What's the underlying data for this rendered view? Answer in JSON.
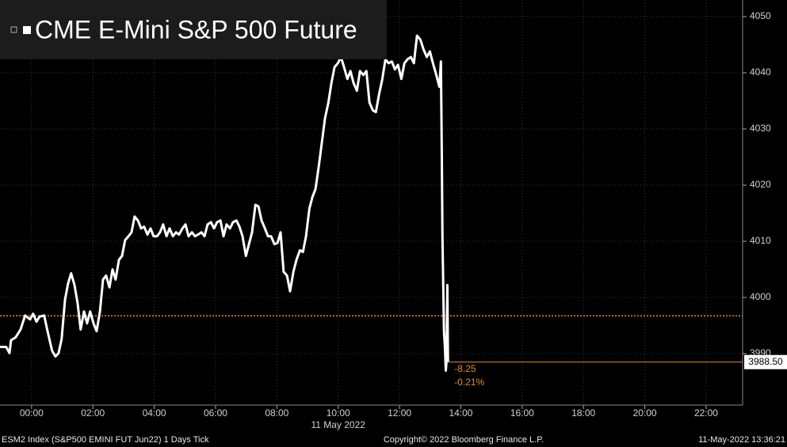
{
  "chart_data": {
    "type": "line",
    "title": "CME E-Mini S&P 500 Future",
    "x": [
      -1.03,
      -0.83,
      -0.72,
      -0.67,
      -0.52,
      -0.36,
      -0.21,
      -0.05,
      0.05,
      0.16,
      0.26,
      0.41,
      0.52,
      0.67,
      0.78,
      0.88,
      0.98,
      1.09,
      1.19,
      1.29,
      1.4,
      1.5,
      1.6,
      1.71,
      1.81,
      1.91,
      2.02,
      2.12,
      2.23,
      2.33,
      2.43,
      2.54,
      2.64,
      2.74,
      2.85,
      2.95,
      3.05,
      3.16,
      3.26,
      3.36,
      3.47,
      3.57,
      3.67,
      3.78,
      3.88,
      3.98,
      4.09,
      4.19,
      4.29,
      4.4,
      4.5,
      4.61,
      4.71,
      4.81,
      4.92,
      5.02,
      5.12,
      5.23,
      5.33,
      5.43,
      5.54,
      5.64,
      5.74,
      5.85,
      5.95,
      6.05,
      6.16,
      6.26,
      6.36,
      6.47,
      6.57,
      6.68,
      6.78,
      6.88,
      6.99,
      7.09,
      7.19,
      7.3,
      7.4,
      7.5,
      7.61,
      7.71,
      7.81,
      7.92,
      8.02,
      8.12,
      8.22,
      8.33,
      8.43,
      8.54,
      8.64,
      8.75,
      8.85,
      8.95,
      9.06,
      9.16,
      9.26,
      9.37,
      9.47,
      9.57,
      9.68,
      9.78,
      9.88,
      9.99,
      10.09,
      10.19,
      10.3,
      10.4,
      10.5,
      10.61,
      10.71,
      10.82,
      10.92,
      11.02,
      11.13,
      11.23,
      11.33,
      11.44,
      11.54,
      11.64,
      11.75,
      11.85,
      11.95,
      12.06,
      12.16,
      12.26,
      12.37,
      12.47,
      12.57,
      12.68,
      12.78,
      12.89,
      12.99,
      13.09,
      13.2,
      13.3,
      13.35,
      13.38,
      13.4,
      13.45,
      13.48,
      13.51,
      13.53,
      13.56,
      13.58
    ],
    "series": [
      {
        "name": "CME E-Mini S&P 500 Future",
        "color": "#ffffff",
        "values": [
          3991.2,
          3991.2,
          3990.1,
          3992.4,
          3992.9,
          3994.3,
          3996.8,
          3996.1,
          3997.1,
          3995.7,
          3996.6,
          3996.8,
          3994.0,
          3990.5,
          3989.5,
          3990.1,
          3992.6,
          3999.6,
          4002.5,
          4004.3,
          4002.2,
          3999.0,
          3994.3,
          3997.5,
          3995.4,
          3997.5,
          3995.4,
          3994.0,
          3997.5,
          4003.2,
          4003.9,
          4001.8,
          4005.0,
          4003.2,
          4006.7,
          4007.4,
          4010.2,
          4010.9,
          4011.6,
          4014.4,
          4013.7,
          4012.3,
          4012.6,
          4011.2,
          4012.3,
          4010.9,
          4010.9,
          4011.6,
          4013.0,
          4010.9,
          4012.3,
          4010.9,
          4011.6,
          4011.2,
          4012.3,
          4013.0,
          4010.9,
          4011.6,
          4010.9,
          4011.2,
          4011.6,
          4010.9,
          4013.0,
          4013.4,
          4012.3,
          4013.4,
          4013.7,
          4010.9,
          4013.0,
          4012.3,
          4013.4,
          4013.7,
          4012.6,
          4010.9,
          4007.4,
          4009.5,
          4011.6,
          4016.5,
          4016.2,
          4013.7,
          4012.3,
          4010.9,
          4010.9,
          4009.5,
          4009.7,
          4011.6,
          4004.6,
          4003.9,
          4001.1,
          4004.6,
          4006.7,
          4008.4,
          4008.1,
          4010.9,
          4015.8,
          4017.9,
          4019.3,
          4023.5,
          4027.7,
          4031.9,
          4034.7,
          4038.2,
          4041.0,
          4041.7,
          4042.8,
          4041.0,
          4038.9,
          4040.3,
          4038.2,
          4036.8,
          4040.3,
          4039.6,
          4040.3,
          4034.7,
          4033.3,
          4033.0,
          4036.1,
          4038.9,
          4042.4,
          4041.7,
          4042.0,
          4040.6,
          4041.4,
          4038.9,
          4041.7,
          4042.4,
          4042.8,
          4041.7,
          4046.6,
          4045.9,
          4044.2,
          4042.8,
          4043.8,
          4041.7,
          4039.6,
          4037.5,
          4042.0,
          4024.9,
          4010.9,
          3994.0,
          3991.2,
          3987.0,
          3988.4,
          4002.2,
          3988.5
        ]
      }
    ],
    "xlim": [
      -1.03,
      23.19
    ],
    "xticks": [
      {
        "value": 0,
        "label": "00:00"
      },
      {
        "value": 2,
        "label": "02:00"
      },
      {
        "value": 4,
        "label": "04:00"
      },
      {
        "value": 6,
        "label": "06:00"
      },
      {
        "value": 8,
        "label": "08:00"
      },
      {
        "value": 10,
        "label": "10:00"
      },
      {
        "value": 12,
        "label": "12:00"
      },
      {
        "value": 14,
        "label": "14:00"
      },
      {
        "value": 16,
        "label": "16:00"
      },
      {
        "value": 18,
        "label": "18:00"
      },
      {
        "value": 20,
        "label": "20:00"
      },
      {
        "value": 22,
        "label": "22:00"
      }
    ],
    "date_label": "11 May 2022",
    "ylim": [
      3980.85,
      4052.95
    ],
    "yticks": [
      3990,
      4000,
      4010,
      4020,
      4030,
      4040,
      4050
    ],
    "grid": true,
    "reference_line": 3996.75,
    "reference_color": "#e08a2c",
    "last_value": {
      "value": 3988.5,
      "label": "3988.50"
    },
    "change": -8.25,
    "change_pct": {
      "value": -0.21,
      "label": "-0.21%"
    },
    "footer_left": "ESM2 Index (S&P500 EMINI FUT  Jun22) 1 Days  Tick",
    "footer_center": "Copyright© 2022 Bloomberg Finance L.P.",
    "footer_right": "11-May-2022 13:36:21"
  }
}
